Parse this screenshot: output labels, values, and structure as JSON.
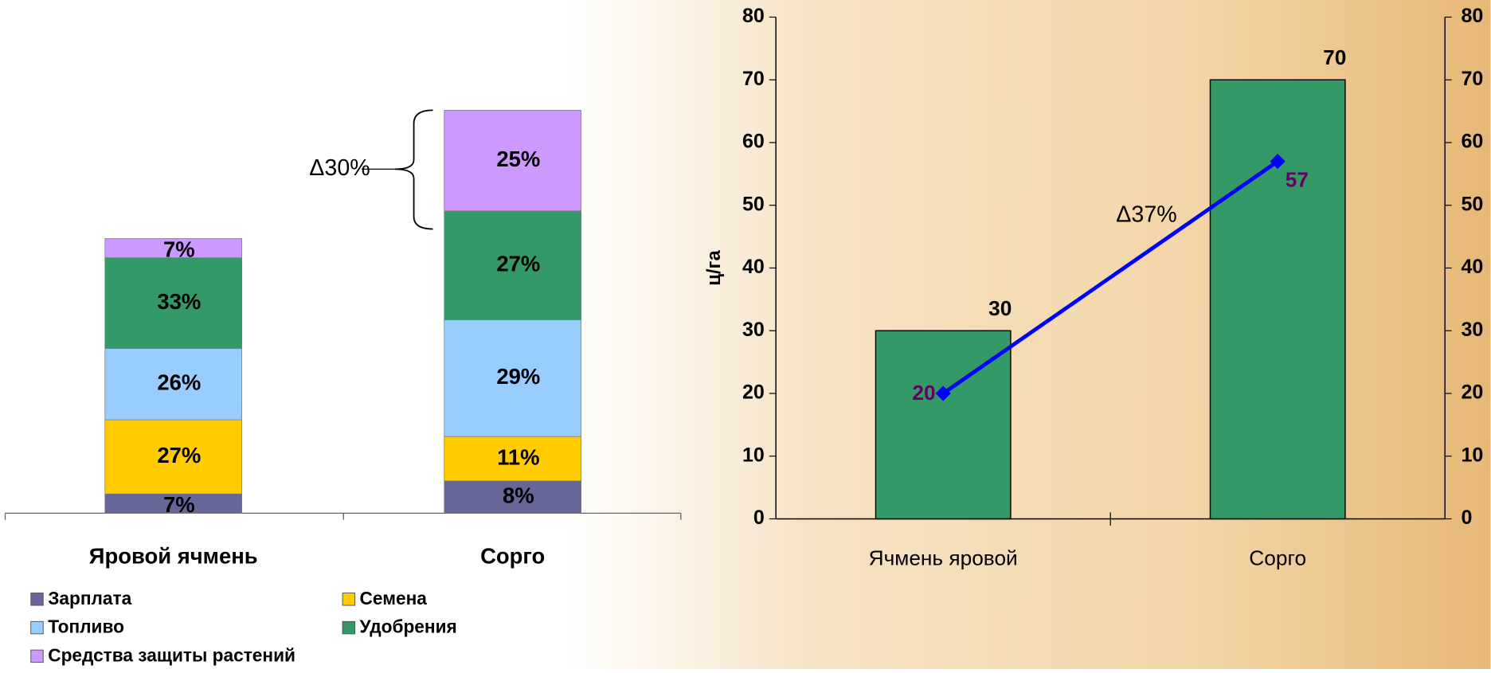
{
  "chart_data": [
    {
      "type": "stacked_bar",
      "categories": [
        "Яровой ячмень",
        "Сорго"
      ],
      "annotation": "Δ30%",
      "series": [
        {
          "name": "Зарплата",
          "color": "#666699",
          "values": [
            7,
            8
          ],
          "value_labels": [
            "7%",
            "8%"
          ]
        },
        {
          "name": "Семена",
          "color": "#ffcc00",
          "values": [
            27,
            11
          ],
          "value_labels": [
            "27%",
            "11%"
          ]
        },
        {
          "name": "Топливо",
          "color": "#99ccff",
          "values": [
            26,
            29
          ],
          "value_labels": [
            "26%",
            "29%"
          ]
        },
        {
          "name": "Удобрения",
          "color": "#339966",
          "values": [
            33,
            27
          ],
          "value_labels": [
            "33%",
            "27%"
          ]
        },
        {
          "name": "Средства защиты растений",
          "color": "#cc99ff",
          "values": [
            7,
            25
          ],
          "value_labels": [
            "7%",
            "25%"
          ]
        }
      ]
    },
    {
      "type": "combo",
      "categories": [
        "Ячмень яровой",
        "Сорго"
      ],
      "ylabel": "ц/га",
      "annotation": "Δ37%",
      "ylim": [
        0,
        80
      ],
      "yticks": [
        0,
        10,
        20,
        30,
        40,
        50,
        60,
        70,
        80
      ],
      "y2lim": [
        0,
        80
      ],
      "y2ticks": [
        0,
        10,
        20,
        30,
        40,
        50,
        60,
        70,
        80
      ],
      "series": [
        {
          "type": "bar",
          "color": "#339966",
          "values": [
            30,
            70
          ]
        },
        {
          "type": "line",
          "axis": "y2",
          "color": "#0000ff",
          "label_color": "#660066",
          "values": [
            20,
            57
          ]
        }
      ]
    }
  ]
}
